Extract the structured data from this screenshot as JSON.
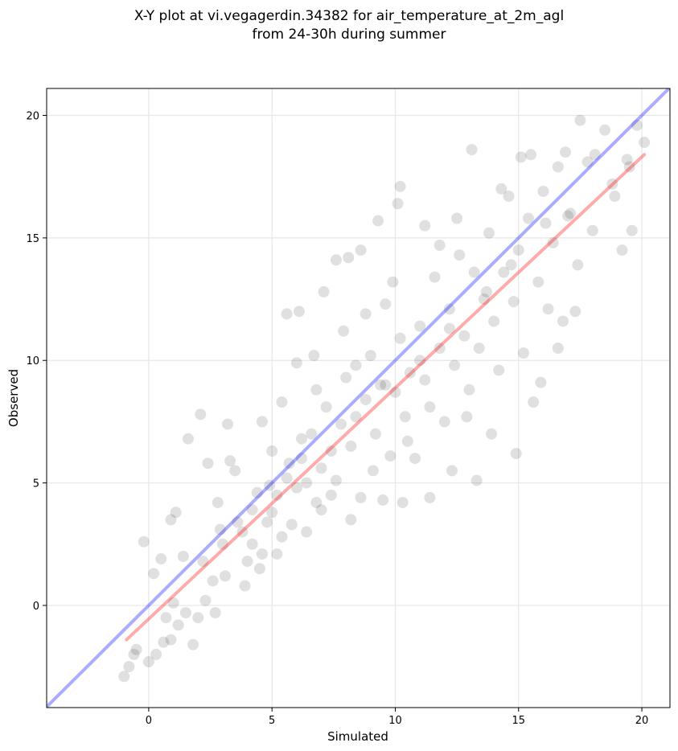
{
  "chart_data": {
    "type": "scatter",
    "title": [
      "X-Y plot at vi.vegagerdin.34382 for air_temperature_at_2m_agl",
      "from 24-30h during summer"
    ],
    "xlabel": "Simulated",
    "ylabel": "Observed",
    "xlim": [
      -4.14,
      21.14
    ],
    "ylim": [
      -4.17,
      21.1
    ],
    "xticks": [
      0,
      5,
      10,
      15,
      20
    ],
    "yticks": [
      0,
      5,
      10,
      15,
      20
    ],
    "grid": true,
    "series": [
      {
        "color": "#000000",
        "opacity": 0.12,
        "x": [
          -1,
          -0.8,
          -0.5,
          0,
          0.3,
          0.6,
          0.9,
          1.2,
          1.5,
          1.8,
          2,
          2.3,
          2.7,
          -0.2,
          0.2,
          0.5,
          0.9,
          1.1,
          1.6,
          2.1,
          2.4,
          2.8,
          3.0,
          3.2,
          3.5,
          3.8,
          4.0,
          4.2,
          4.4,
          4.6,
          4.8,
          5.0,
          5.2,
          5.4,
          5.6,
          5.8,
          6.0,
          6.2,
          6.4,
          6.6,
          6.8,
          7.0,
          7.2,
          7.4,
          7.6,
          7.8,
          8.0,
          8.2,
          8.4,
          8.6,
          8.8,
          9.0,
          9.2,
          9.4,
          9.6,
          9.8,
          10,
          10.2,
          10.4,
          10.6,
          10.8,
          11,
          11.2,
          11.4,
          11.6,
          11.8,
          12,
          12.2,
          12.4,
          12.6,
          12.8,
          13,
          13.2,
          13.4,
          13.6,
          13.8,
          14,
          14.2,
          14.4,
          14.6,
          14.8,
          15,
          15.2,
          15.4,
          15.6,
          15.8,
          16,
          16.2,
          16.4,
          16.6,
          16.8,
          17,
          17.4,
          17.8,
          18,
          18.5,
          18.8,
          19.2,
          19.5,
          19.8,
          20.1,
          19.6,
          13.1,
          15.1,
          17.5,
          10.1,
          9.3,
          7.6,
          8.1,
          5.6,
          6.1,
          6.7,
          7.1,
          8.6,
          10.2,
          11.2,
          12.3,
          13.3,
          11.4,
          10.3,
          9.5,
          8.2,
          7.0,
          6.4,
          4.5,
          5.2,
          3.9,
          3.1,
          2.6,
          1.4,
          5.0,
          4.6,
          5.4,
          6.0,
          6.8,
          7.9,
          8.8,
          9.9,
          11.8,
          12.5,
          14.3,
          15.5,
          16.9,
          18.1,
          14.9,
          13.9,
          12.9,
          15.9,
          16.6,
          17.3,
          9.1,
          10.5,
          7.4,
          6.2,
          5.7,
          4.2,
          3.6,
          4.9,
          8.4,
          9.6,
          11.0,
          12.2,
          13.7,
          14.7,
          16.1,
          17.1,
          18.9,
          19.4,
          0.7,
          1.0,
          -0.6,
          2.2,
          3.3,
          2.9
        ],
        "values": [
          -2.9,
          -2.5,
          -1.8,
          -2.3,
          -2,
          -1.5,
          -1.4,
          -0.8,
          -0.3,
          -1.6,
          -0.5,
          0.2,
          -0.3,
          2.6,
          1.3,
          1.9,
          3.5,
          3.8,
          6.8,
          7.8,
          5.8,
          4.2,
          2.5,
          7.4,
          5.5,
          3,
          1.8,
          2.5,
          4.6,
          2.1,
          3.4,
          3.8,
          4.5,
          2.8,
          5.2,
          3.3,
          4.8,
          6.0,
          5.0,
          7.0,
          4.2,
          5.6,
          8.1,
          6.3,
          5.1,
          7.4,
          9.3,
          6.5,
          7.7,
          4.4,
          8.4,
          10.2,
          7.0,
          9.0,
          12.3,
          6.1,
          8.7,
          10.9,
          7.7,
          9.5,
          6.0,
          11.4,
          9.2,
          8.1,
          13.4,
          10.5,
          7.5,
          12.1,
          9.8,
          14.3,
          11.0,
          8.8,
          13.6,
          10.5,
          12.5,
          15.2,
          11.6,
          9.6,
          13.6,
          16.7,
          12.4,
          14.5,
          10.3,
          15.8,
          8.3,
          13.2,
          16.9,
          12.1,
          14.8,
          17.9,
          11.6,
          15.9,
          13.9,
          18.1,
          15.3,
          19.4,
          17.2,
          14.5,
          17.9,
          19.6,
          18.9,
          15.3,
          18.6,
          18.3,
          19.8,
          16.4,
          15.7,
          14.1,
          14.2,
          11.9,
          12.0,
          10.2,
          12.8,
          14.5,
          17.1,
          15.5,
          5.5,
          5.1,
          4.4,
          4.2,
          4.3,
          3.5,
          3.9,
          3.0,
          1.5,
          2.1,
          0.8,
          1.2,
          1.0,
          2.0,
          6.3,
          7.5,
          8.3,
          9.9,
          8.8,
          11.2,
          11.9,
          13.2,
          14.7,
          15.8,
          17.0,
          18.4,
          18.5,
          18.4,
          6.2,
          7.0,
          7.7,
          9.1,
          10.5,
          12.0,
          5.5,
          6.7,
          4.5,
          6.8,
          5.8,
          3.9,
          3.4,
          4.9,
          9.8,
          9.0,
          10.0,
          11.3,
          12.8,
          13.9,
          15.6,
          16.0,
          16.7,
          18.2,
          -0.5,
          0.1,
          -2.0,
          1.8,
          5.9,
          3.1
        ]
      }
    ],
    "lines": [
      {
        "color": "#0000ff",
        "x": [
          -4.14,
          21.14
        ],
        "values": [
          -4.14,
          21.14
        ]
      },
      {
        "color": "#ff0000",
        "x": [
          -0.9,
          20.1
        ],
        "values": [
          -1.4,
          18.4
        ]
      }
    ]
  }
}
